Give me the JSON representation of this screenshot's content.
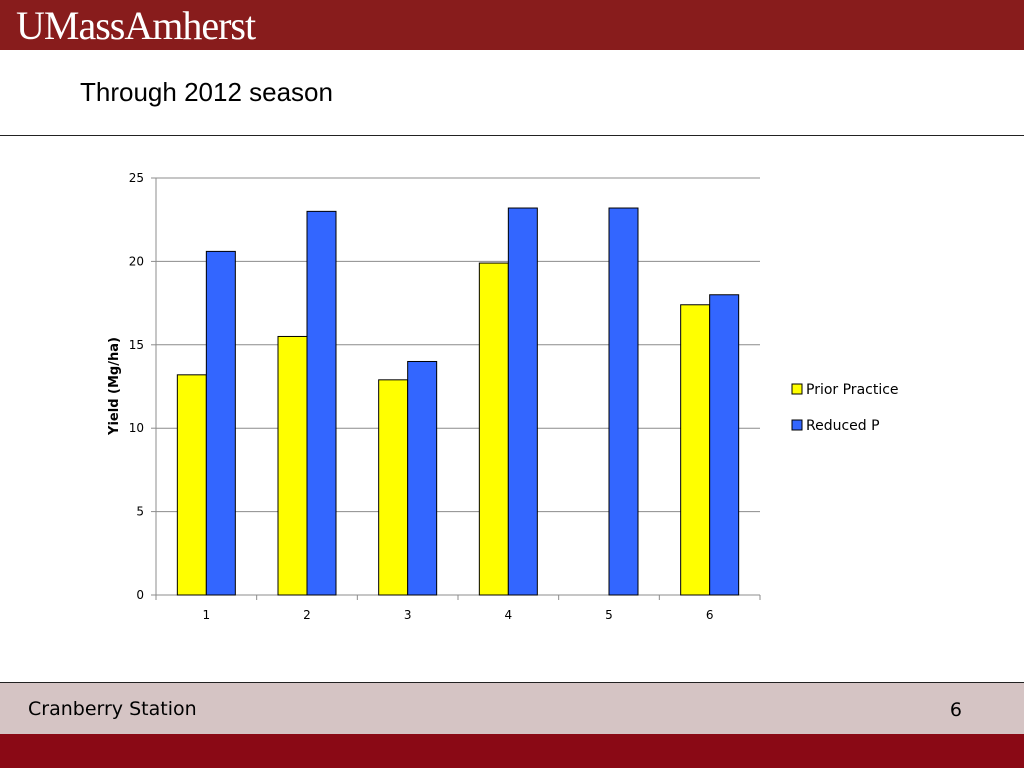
{
  "header": {
    "logo_text": "UMassAmherst"
  },
  "slide": {
    "title": "Through 2012 season"
  },
  "footer": {
    "left_text": "Cranberry Station",
    "page_number": "6"
  },
  "colors": {
    "brand": "#881c1c",
    "footer_bg": "#d5c4c4",
    "bottom_bar": "#8a0915",
    "series_1": "#ffff00",
    "series_2": "#3366ff"
  },
  "chart_data": {
    "type": "bar",
    "title": "",
    "xlabel": "",
    "ylabel": "Yield (Mg/ha)",
    "categories": [
      "1",
      "2",
      "3",
      "4",
      "5",
      "6"
    ],
    "ylim": [
      0,
      25
    ],
    "yticks": [
      "0",
      "5",
      "10",
      "15",
      "20",
      "25"
    ],
    "grid": true,
    "legend_position": "right",
    "series": [
      {
        "name": "Prior Practice",
        "color": "#ffff00",
        "values": [
          13.2,
          15.5,
          12.9,
          19.9,
          null,
          17.4
        ]
      },
      {
        "name": "Reduced P",
        "color": "#3366ff",
        "values": [
          20.6,
          23.0,
          14.0,
          23.2,
          23.2,
          18.0
        ]
      }
    ]
  }
}
